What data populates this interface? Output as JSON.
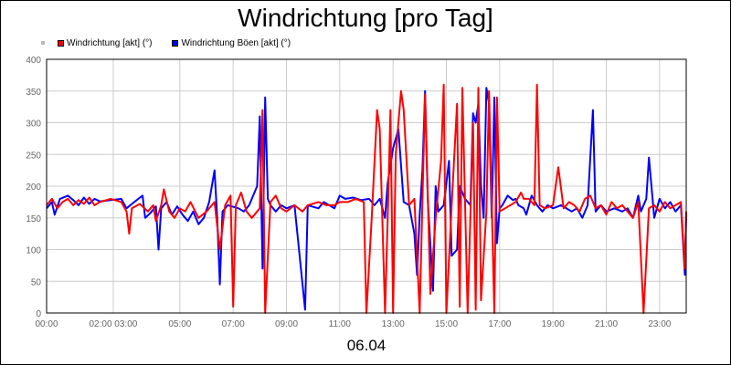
{
  "chart_data": {
    "type": "line",
    "title": "Windrichtung [pro Tag]",
    "date_label": "06.04",
    "y_ticks": [
      0,
      50,
      100,
      150,
      200,
      250,
      300,
      350,
      400
    ],
    "ylim": [
      0,
      400
    ],
    "xlim_hours": [
      0,
      24
    ],
    "x_ticks": [
      {
        "h": 0,
        "label": "00:00"
      },
      {
        "h": 2.5,
        "label": "02:00 03:00"
      },
      {
        "h": 5,
        "label": "05:00"
      },
      {
        "h": 7,
        "label": "07:00"
      },
      {
        "h": 9,
        "label": "09:00"
      },
      {
        "h": 11,
        "label": "11:00"
      },
      {
        "h": 13,
        "label": "13:00"
      },
      {
        "h": 15,
        "label": "15:00"
      },
      {
        "h": 17,
        "label": "17:00"
      },
      {
        "h": 19,
        "label": "19:00"
      },
      {
        "h": 21,
        "label": "21:00"
      },
      {
        "h": 23,
        "label": "23:00"
      }
    ],
    "grid": true,
    "legend_position": "top-left",
    "series": [
      {
        "name": "Windrichtung Böen [akt] (°)",
        "color": "#0000ff",
        "points": [
          [
            0,
            165
          ],
          [
            0.2,
            175
          ],
          [
            0.3,
            155
          ],
          [
            0.5,
            180
          ],
          [
            0.8,
            185
          ],
          [
            1,
            178
          ],
          [
            1.2,
            170
          ],
          [
            1.4,
            182
          ],
          [
            1.6,
            172
          ],
          [
            1.8,
            180
          ],
          [
            2,
            176
          ],
          [
            2.4,
            178
          ],
          [
            2.8,
            180
          ],
          [
            3.0,
            165
          ],
          [
            3.2,
            172
          ],
          [
            3.5,
            182
          ],
          [
            3.6,
            185
          ],
          [
            3.7,
            150
          ],
          [
            3.9,
            158
          ],
          [
            4.1,
            168
          ],
          [
            4.2,
            100
          ],
          [
            4.3,
            165
          ],
          [
            4.5,
            175
          ],
          [
            4.7,
            155
          ],
          [
            4.9,
            168
          ],
          [
            5.1,
            155
          ],
          [
            5.3,
            145
          ],
          [
            5.5,
            160
          ],
          [
            5.7,
            140
          ],
          [
            5.9,
            150
          ],
          [
            6.1,
            175
          ],
          [
            6.3,
            225
          ],
          [
            6.4,
            150
          ],
          [
            6.5,
            45
          ],
          [
            6.6,
            160
          ],
          [
            6.8,
            170
          ],
          [
            7.2,
            165
          ],
          [
            7.4,
            160
          ],
          [
            7.6,
            170
          ],
          [
            7.9,
            200
          ],
          [
            8.0,
            310
          ],
          [
            8.1,
            70
          ],
          [
            8.2,
            340
          ],
          [
            8.3,
            180
          ],
          [
            8.4,
            170
          ],
          [
            8.6,
            160
          ],
          [
            8.8,
            170
          ],
          [
            9.0,
            165
          ],
          [
            9.3,
            170
          ],
          [
            9.7,
            5
          ],
          [
            9.8,
            170
          ],
          [
            10.2,
            165
          ],
          [
            10.4,
            175
          ],
          [
            10.6,
            170
          ],
          [
            10.8,
            165
          ],
          [
            11.0,
            185
          ],
          [
            11.2,
            180
          ],
          [
            11.5,
            182
          ],
          [
            11.8,
            178
          ],
          [
            12.1,
            180
          ],
          [
            12.3,
            170
          ],
          [
            12.5,
            180
          ],
          [
            12.7,
            150
          ],
          [
            12.8,
            205
          ],
          [
            13.0,
            260
          ],
          [
            13.2,
            290
          ],
          [
            13.4,
            175
          ],
          [
            13.6,
            170
          ],
          [
            13.8,
            125
          ],
          [
            13.9,
            60
          ],
          [
            14.0,
            155
          ],
          [
            14.1,
            225
          ],
          [
            14.2,
            350
          ],
          [
            14.3,
            180
          ],
          [
            14.5,
            35
          ],
          [
            14.6,
            200
          ],
          [
            14.7,
            160
          ],
          [
            14.9,
            170
          ],
          [
            15.1,
            240
          ],
          [
            15.2,
            90
          ],
          [
            15.4,
            100
          ],
          [
            15.5,
            200
          ],
          [
            15.7,
            180
          ],
          [
            15.9,
            170
          ],
          [
            16.0,
            315
          ],
          [
            16.1,
            300
          ],
          [
            16.2,
            330
          ],
          [
            16.3,
            200
          ],
          [
            16.4,
            150
          ],
          [
            16.5,
            355
          ],
          [
            16.6,
            330
          ],
          [
            16.7,
            150
          ],
          [
            16.8,
            340
          ],
          [
            16.9,
            110
          ],
          [
            17.0,
            165
          ],
          [
            17.1,
            170
          ],
          [
            17.3,
            185
          ],
          [
            17.5,
            178
          ],
          [
            17.6,
            180
          ],
          [
            17.7,
            170
          ],
          [
            17.9,
            165
          ],
          [
            18.0,
            155
          ],
          [
            18.2,
            185
          ],
          [
            18.4,
            170
          ],
          [
            18.6,
            160
          ],
          [
            18.8,
            170
          ],
          [
            19.0,
            165
          ],
          [
            19.3,
            170
          ],
          [
            19.5,
            165
          ],
          [
            19.7,
            160
          ],
          [
            19.9,
            165
          ],
          [
            20.1,
            150
          ],
          [
            20.3,
            170
          ],
          [
            20.5,
            320
          ],
          [
            20.6,
            160
          ],
          [
            20.8,
            170
          ],
          [
            21.0,
            160
          ],
          [
            21.3,
            165
          ],
          [
            21.6,
            160
          ],
          [
            21.8,
            165
          ],
          [
            22.0,
            150
          ],
          [
            22.2,
            185
          ],
          [
            22.3,
            160
          ],
          [
            22.5,
            180
          ],
          [
            22.6,
            245
          ],
          [
            22.8,
            150
          ],
          [
            23.0,
            180
          ],
          [
            23.2,
            165
          ],
          [
            23.4,
            175
          ],
          [
            23.6,
            160
          ],
          [
            23.8,
            170
          ],
          [
            23.95,
            60
          ],
          [
            24.0,
            160
          ]
        ]
      },
      {
        "name": "Windrichtung [akt] (°)",
        "color": "#ff0000",
        "points": [
          [
            0,
            170
          ],
          [
            0.2,
            180
          ],
          [
            0.4,
            165
          ],
          [
            0.6,
            175
          ],
          [
            0.8,
            180
          ],
          [
            1,
            170
          ],
          [
            1.2,
            178
          ],
          [
            1.4,
            172
          ],
          [
            1.6,
            182
          ],
          [
            1.8,
            170
          ],
          [
            2,
            175
          ],
          [
            2.4,
            180
          ],
          [
            2.8,
            175
          ],
          [
            3.0,
            160
          ],
          [
            3.1,
            125
          ],
          [
            3.2,
            165
          ],
          [
            3.5,
            172
          ],
          [
            3.8,
            160
          ],
          [
            4.0,
            170
          ],
          [
            4.1,
            145
          ],
          [
            4.3,
            170
          ],
          [
            4.4,
            195
          ],
          [
            4.6,
            160
          ],
          [
            4.8,
            150
          ],
          [
            5.0,
            165
          ],
          [
            5.2,
            160
          ],
          [
            5.4,
            175
          ],
          [
            5.7,
            150
          ],
          [
            6.0,
            160
          ],
          [
            6.3,
            175
          ],
          [
            6.5,
            100
          ],
          [
            6.7,
            170
          ],
          [
            6.9,
            185
          ],
          [
            7.0,
            10
          ],
          [
            7.1,
            170
          ],
          [
            7.3,
            190
          ],
          [
            7.5,
            160
          ],
          [
            7.7,
            150
          ],
          [
            8.0,
            165
          ],
          [
            8.1,
            320
          ],
          [
            8.2,
            0
          ],
          [
            8.4,
            175
          ],
          [
            8.5,
            180
          ],
          [
            8.6,
            185
          ],
          [
            8.8,
            165
          ],
          [
            9.0,
            160
          ],
          [
            9.3,
            170
          ],
          [
            9.6,
            160
          ],
          [
            9.8,
            170
          ],
          [
            10.2,
            175
          ],
          [
            10.5,
            170
          ],
          [
            10.8,
            170
          ],
          [
            11.0,
            175
          ],
          [
            11.3,
            175
          ],
          [
            11.6,
            180
          ],
          [
            11.9,
            175
          ],
          [
            12.0,
            0
          ],
          [
            12.2,
            150
          ],
          [
            12.4,
            320
          ],
          [
            12.5,
            290
          ],
          [
            12.7,
            0
          ],
          [
            12.8,
            150
          ],
          [
            12.9,
            320
          ],
          [
            13.0,
            0
          ],
          [
            13.1,
            250
          ],
          [
            13.3,
            350
          ],
          [
            13.4,
            320
          ],
          [
            13.6,
            170
          ],
          [
            13.8,
            180
          ],
          [
            14.0,
            0
          ],
          [
            14.2,
            345
          ],
          [
            14.4,
            30
          ],
          [
            14.6,
            150
          ],
          [
            14.8,
            240
          ],
          [
            14.9,
            360
          ],
          [
            15.0,
            0
          ],
          [
            15.2,
            170
          ],
          [
            15.4,
            330
          ],
          [
            15.5,
            10
          ],
          [
            15.6,
            355
          ],
          [
            15.8,
            0
          ],
          [
            16.0,
            300
          ],
          [
            16.1,
            5
          ],
          [
            16.2,
            355
          ],
          [
            16.3,
            20
          ],
          [
            16.5,
            160
          ],
          [
            16.6,
            350
          ],
          [
            16.8,
            0
          ],
          [
            16.9,
            340
          ],
          [
            17.0,
            160
          ],
          [
            17.2,
            165
          ],
          [
            17.4,
            170
          ],
          [
            17.6,
            175
          ],
          [
            17.8,
            190
          ],
          [
            17.9,
            180
          ],
          [
            18.1,
            180
          ],
          [
            18.3,
            170
          ],
          [
            18.4,
            360
          ],
          [
            18.5,
            170
          ],
          [
            18.7,
            165
          ],
          [
            19.0,
            170
          ],
          [
            19.2,
            230
          ],
          [
            19.4,
            165
          ],
          [
            19.6,
            175
          ],
          [
            19.8,
            170
          ],
          [
            20.0,
            160
          ],
          [
            20.2,
            180
          ],
          [
            20.4,
            185
          ],
          [
            20.6,
            165
          ],
          [
            20.8,
            170
          ],
          [
            21.0,
            155
          ],
          [
            21.2,
            175
          ],
          [
            21.4,
            165
          ],
          [
            21.6,
            170
          ],
          [
            21.8,
            160
          ],
          [
            22.0,
            150
          ],
          [
            22.2,
            175
          ],
          [
            22.4,
            0
          ],
          [
            22.6,
            165
          ],
          [
            22.8,
            170
          ],
          [
            23.0,
            160
          ],
          [
            23.2,
            175
          ],
          [
            23.4,
            165
          ],
          [
            23.6,
            170
          ],
          [
            23.8,
            175
          ],
          [
            23.95,
            70
          ],
          [
            24.0,
            160
          ]
        ]
      }
    ]
  },
  "legend_items": [
    {
      "name": "Windrichtung [akt] (°)",
      "color": "#ff0000"
    },
    {
      "name": "Windrichtung Böen [akt] (°)",
      "color": "#0000ff"
    }
  ]
}
